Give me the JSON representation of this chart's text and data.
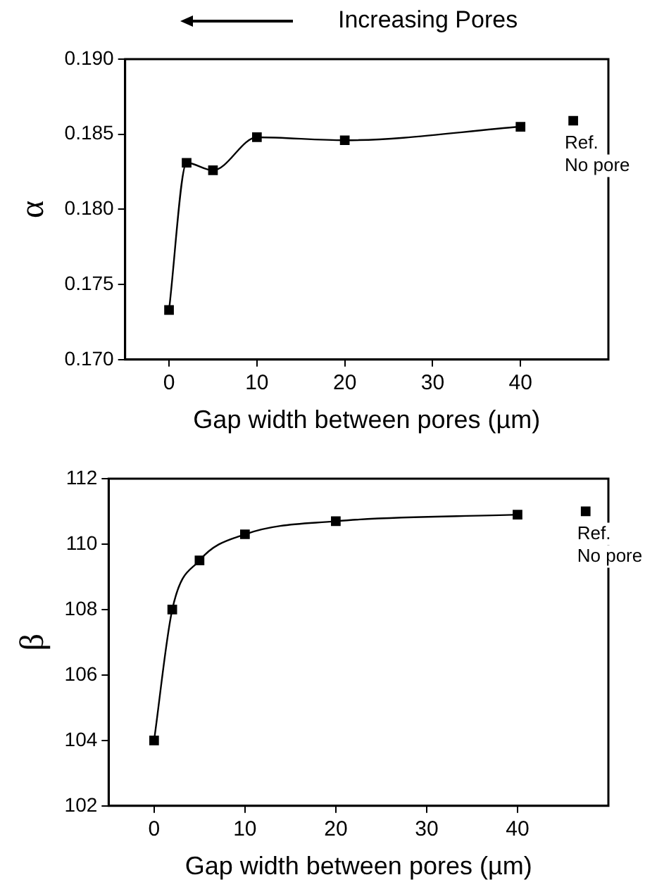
{
  "chart_data": [
    {
      "type": "line",
      "title": "Increasing Pores",
      "xlabel": "Gap width between pores (µm)",
      "ylabel": "α",
      "x": [
        0,
        2,
        5,
        10,
        20,
        40
      ],
      "series": [
        {
          "color": "#000000",
          "values": [
            0.1733,
            0.1831,
            0.1826,
            0.1848,
            0.1846,
            0.1855
          ]
        },
        {
          "type": "scatter",
          "name": "Ref. No pore",
          "color": "#000000",
          "x": [
            46
          ],
          "values": [
            0.1859
          ]
        }
      ],
      "xlim": [
        -5,
        50
      ],
      "xticks": [
        0,
        10,
        20,
        30,
        40
      ],
      "ylim": [
        0.17,
        0.19
      ],
      "yticks": [
        {
          "value": 0.17,
          "label": "0.170"
        },
        {
          "value": 0.175,
          "label": "0.175"
        },
        {
          "value": 0.18,
          "label": "0.180"
        },
        {
          "value": 0.185,
          "label": "0.185"
        },
        {
          "value": 0.19,
          "label": "0.190"
        }
      ],
      "grid": false,
      "legend": false,
      "marker": "square",
      "line_style": "solid"
    },
    {
      "type": "line",
      "xlabel": "Gap width between pores (µm)",
      "ylabel": "β",
      "x": [
        0,
        2,
        5,
        10,
        20,
        40
      ],
      "series": [
        {
          "color": "#000000",
          "values": [
            104.0,
            108.0,
            109.5,
            110.3,
            110.7,
            110.9
          ]
        },
        {
          "type": "scatter",
          "name": "Ref. No pore",
          "color": "#000000",
          "x": [
            47.5
          ],
          "values": [
            111.0
          ]
        }
      ],
      "xlim": [
        -5,
        50
      ],
      "xticks": [
        0,
        10,
        20,
        30,
        40
      ],
      "ylim": [
        102,
        112
      ],
      "yticks": [
        102,
        104,
        106,
        108,
        110,
        112
      ],
      "grid": false,
      "legend": false,
      "marker": "square",
      "line_style": "solid"
    }
  ]
}
